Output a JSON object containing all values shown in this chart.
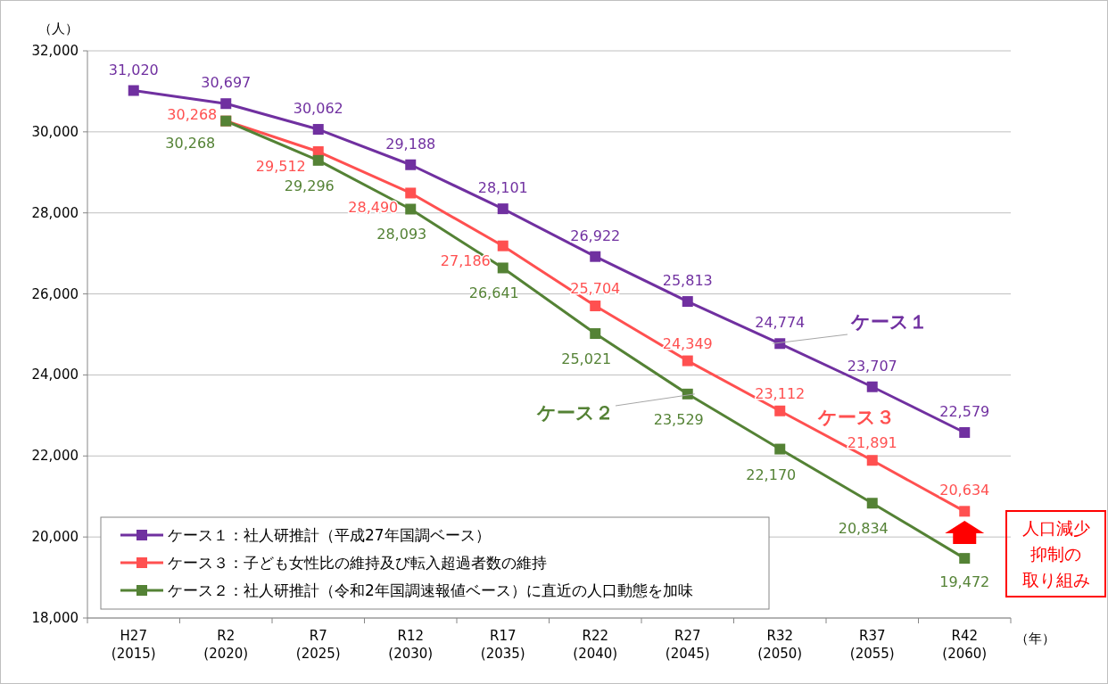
{
  "chart_data": {
    "type": "line",
    "categories": [
      "H27\n(2015)",
      "R2\n(2020)",
      "R7\n(2025)",
      "R12\n(2030)",
      "R17\n(2035)",
      "R22\n(2040)",
      "R27\n(2045)",
      "R32\n(2050)",
      "R37\n(2055)",
      "R42\n(2060)"
    ],
    "series": [
      {
        "name": "ケース１：社人研推計（平成27年国調ベース）",
        "color": "#7030a0",
        "values": [
          31020,
          30697,
          30062,
          29188,
          28101,
          26922,
          25813,
          24774,
          23707,
          22579
        ],
        "value_labels": [
          "31,020",
          "30,697",
          "30,062",
          "29,188",
          "28,101",
          "26,922",
          "25,813",
          "24,774",
          "23,707",
          "22,579"
        ]
      },
      {
        "name": "ケース３：子ども女性比の維持及び転入超過者数の維持",
        "color": "#ff5050",
        "values": [
          null,
          30268,
          29512,
          28490,
          27186,
          25704,
          24349,
          23112,
          21891,
          20634
        ],
        "value_labels": [
          null,
          "30,268",
          "29,512",
          "28,490",
          "27,186",
          "25,704",
          "24,349",
          "23,112",
          "21,891",
          "20,634"
        ]
      },
      {
        "name": "ケース２：社人研推計（令和2年国調速報値ベース）に直近の人口動態を加味",
        "color": "#548235",
        "values": [
          null,
          30268,
          29296,
          28093,
          26641,
          25021,
          23529,
          22170,
          20834,
          19472
        ],
        "value_labels": [
          null,
          "30,268",
          "29,296",
          "28,093",
          "26,641",
          "25,021",
          "23,529",
          "22,170",
          "20,834",
          "19,472"
        ]
      }
    ],
    "ylabel": "（人）",
    "xlabel": "（年）",
    "ylim": [
      18000,
      32000
    ],
    "yticks": [
      {
        "value": 18000,
        "label": "18,000"
      },
      {
        "value": 20000,
        "label": "20,000"
      },
      {
        "value": 22000,
        "label": "22,000"
      },
      {
        "value": 24000,
        "label": "24,000"
      },
      {
        "value": 26000,
        "label": "26,000"
      },
      {
        "value": 28000,
        "label": "28,000"
      },
      {
        "value": 30000,
        "label": "30,000"
      },
      {
        "value": 32000,
        "label": "32,000"
      }
    ],
    "annotations": [
      {
        "text": "ケース１",
        "x": "R32\n(2050)",
        "y": 24774
      },
      "ケース３",
      {
        "text": "ケース２",
        "x": "R27\n(2045)",
        "y": 23529
      },
      "人口減少抑制の取り組み"
    ],
    "grid": "y",
    "legend": "bottom left",
    "marker": "square",
    "line_style": "solid"
  }
}
